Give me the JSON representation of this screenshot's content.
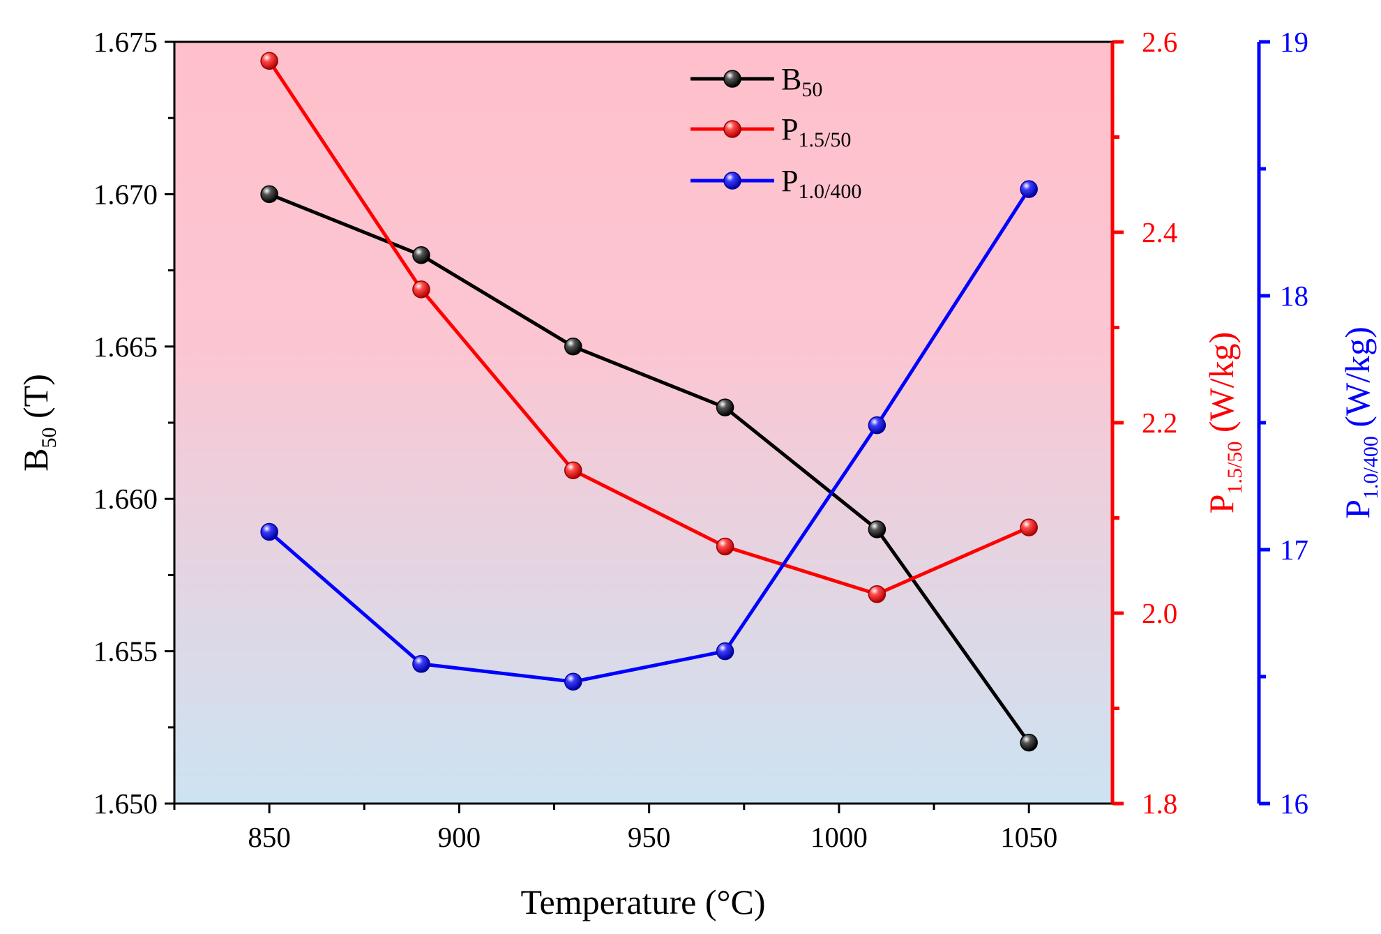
{
  "chart_data": {
    "type": "line",
    "x": [
      850,
      890,
      930,
      970,
      1010,
      1050
    ],
    "xlim": [
      825,
      1072
    ],
    "xticks": [
      850,
      900,
      950,
      1000,
      1050
    ],
    "xlabel": "Temperature (°C)",
    "series": [
      {
        "name": "B50",
        "legend_main": "B",
        "legend_sub": "50",
        "axis": "left",
        "color": "#000000",
        "values": [
          1.67,
          1.668,
          1.665,
          1.663,
          1.659,
          1.652
        ]
      },
      {
        "name": "P1.5/50",
        "legend_main": "P",
        "legend_sub": "1.5/50",
        "axis": "right1",
        "color": "#ff0000",
        "values": [
          2.58,
          2.34,
          2.15,
          2.07,
          2.02,
          2.09
        ]
      },
      {
        "name": "P1.0/400",
        "legend_main": "P",
        "legend_sub": "1.0/400",
        "axis": "right2",
        "color": "#0000ff",
        "values": [
          17.07,
          16.55,
          16.48,
          16.6,
          17.49,
          18.42
        ]
      }
    ],
    "axes": {
      "left": {
        "ylim": [
          1.65,
          1.675
        ],
        "ticks": [
          "1.650",
          "1.655",
          "1.660",
          "1.665",
          "1.670",
          "1.675"
        ],
        "label_main": "B",
        "label_sub": "50",
        "label_tail": " (T)",
        "color": "#000000"
      },
      "right1": {
        "ylim": [
          1.8,
          2.6
        ],
        "ticks": [
          "1.8",
          "2.0",
          "2.2",
          "2.4",
          "2.6"
        ],
        "label_main": "P",
        "label_sub": "1.5/50",
        "label_tail": " (W/kg)",
        "color": "#ff0000"
      },
      "right2": {
        "ylim": [
          16,
          19
        ],
        "ticks": [
          "16",
          "17",
          "18",
          "19"
        ],
        "label_main": "P",
        "label_sub": "1.0/400",
        "label_tail": " (W/kg)",
        "color": "#0000ff"
      }
    },
    "legend_position": "top-center",
    "background_gradient": [
      "#ffc0cb",
      "#cce3f2"
    ]
  }
}
